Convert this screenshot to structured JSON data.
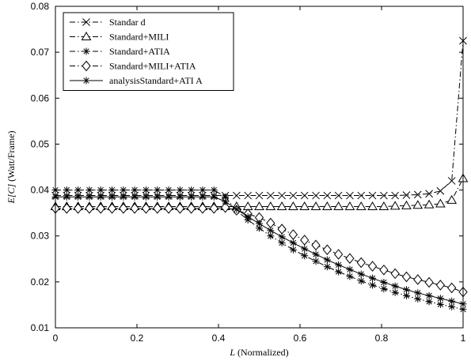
{
  "chart_data": {
    "type": "line",
    "xlabel_italic": "L",
    "xlabel_rest": " (Normalized)",
    "ylabel_italic": "E[C]",
    "ylabel_rest": " (Watt/Frame)",
    "xlim": [
      0,
      1
    ],
    "ylim": [
      0.01,
      0.08
    ],
    "xticks": [
      0,
      0.2,
      0.4,
      0.6,
      0.8,
      1
    ],
    "xtick_labels": [
      "0",
      "0.2",
      "0.4",
      "0.6",
      "0.8",
      "1"
    ],
    "yticks": [
      0.01,
      0.02,
      0.03,
      0.04,
      0.05,
      0.06,
      0.07,
      0.08
    ],
    "ytick_labels": [
      "0.01",
      "0.02",
      "0.03",
      "0.04",
      "0.05",
      "0.06",
      "0.07",
      "0.08"
    ],
    "grid": false,
    "legend_position": "top-left",
    "x": [
      0,
      0.0278,
      0.0556,
      0.0833,
      0.1111,
      0.1389,
      0.1667,
      0.1944,
      0.2222,
      0.25,
      0.2778,
      0.3056,
      0.3333,
      0.3611,
      0.3889,
      0.4167,
      0.4444,
      0.4722,
      0.5,
      0.5278,
      0.5556,
      0.5833,
      0.6111,
      0.6389,
      0.6667,
      0.6944,
      0.7222,
      0.75,
      0.7778,
      0.8056,
      0.8333,
      0.8611,
      0.8889,
      0.9167,
      0.9444,
      0.9722,
      1.0
    ],
    "series": [
      {
        "name": "Standar d",
        "line": "dashdot",
        "marker": "x",
        "values": [
          0.0388,
          0.0388,
          0.0388,
          0.0388,
          0.0388,
          0.0388,
          0.0388,
          0.0388,
          0.0388,
          0.0388,
          0.0388,
          0.0388,
          0.0388,
          0.0388,
          0.0388,
          0.0388,
          0.0388,
          0.0388,
          0.0388,
          0.0388,
          0.0388,
          0.0388,
          0.0388,
          0.0388,
          0.0388,
          0.0388,
          0.0388,
          0.0388,
          0.0388,
          0.0388,
          0.0388,
          0.0389,
          0.039,
          0.0392,
          0.0398,
          0.042,
          0.0725
        ]
      },
      {
        "name": "Standard+MILI",
        "line": "dashdot",
        "marker": "triangle",
        "values": [
          0.0364,
          0.0364,
          0.0364,
          0.0364,
          0.0364,
          0.0364,
          0.0364,
          0.0364,
          0.0364,
          0.0364,
          0.0364,
          0.0364,
          0.0364,
          0.0364,
          0.0364,
          0.0364,
          0.0364,
          0.0364,
          0.0364,
          0.0364,
          0.0364,
          0.0364,
          0.0364,
          0.0364,
          0.0364,
          0.0364,
          0.0364,
          0.0364,
          0.0364,
          0.0364,
          0.0365,
          0.0366,
          0.0367,
          0.0368,
          0.037,
          0.0378,
          0.0425
        ]
      },
      {
        "name": "Standard+ATIA",
        "line": "dashdot",
        "marker": "asterisk",
        "values": [
          0.04,
          0.04,
          0.04,
          0.04,
          0.04,
          0.04,
          0.04,
          0.04,
          0.04,
          0.04,
          0.04,
          0.04,
          0.04,
          0.04,
          0.04,
          0.0385,
          0.0355,
          0.0335,
          0.0317,
          0.03,
          0.0285,
          0.027,
          0.0257,
          0.0245,
          0.0233,
          0.0222,
          0.0212,
          0.0202,
          0.0193,
          0.0185,
          0.0177,
          0.017,
          0.0163,
          0.0157,
          0.0151,
          0.0146,
          0.014
        ]
      },
      {
        "name": "Standard+MILI+ATIA",
        "line": "dashdot",
        "marker": "diamond",
        "values": [
          0.036,
          0.036,
          0.036,
          0.036,
          0.036,
          0.036,
          0.036,
          0.036,
          0.036,
          0.036,
          0.036,
          0.036,
          0.036,
          0.036,
          0.036,
          0.0362,
          0.0356,
          0.0348,
          0.034,
          0.0328,
          0.0315,
          0.0303,
          0.0291,
          0.028,
          0.027,
          0.026,
          0.0251,
          0.0242,
          0.0234,
          0.0226,
          0.0218,
          0.0211,
          0.0205,
          0.0199,
          0.0193,
          0.0187,
          0.0178
        ]
      },
      {
        "name": "analysisStandard+ATI  A",
        "line": "solid",
        "marker": "asterisk",
        "values": [
          0.0385,
          0.0385,
          0.0385,
          0.0385,
          0.0385,
          0.0385,
          0.0385,
          0.0385,
          0.0385,
          0.0385,
          0.0385,
          0.0385,
          0.0385,
          0.0385,
          0.0385,
          0.0375,
          0.0358,
          0.0342,
          0.0327,
          0.0312,
          0.0298,
          0.0285,
          0.0272,
          0.026,
          0.0248,
          0.0237,
          0.0227,
          0.0217,
          0.0208,
          0.0199,
          0.0191,
          0.0183,
          0.0176,
          0.017,
          0.0164,
          0.0158,
          0.0152
        ]
      }
    ]
  }
}
